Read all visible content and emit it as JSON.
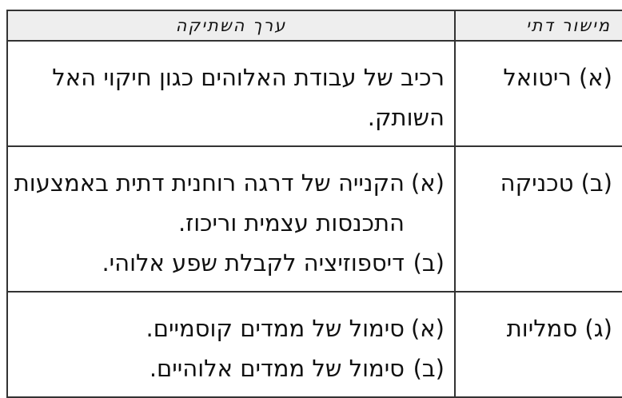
{
  "table": {
    "headers": [
      "מישור דתי",
      "ערך השתיקה"
    ],
    "rows": [
      {
        "category": "(א) ריטואל",
        "items": [
          {
            "label": "",
            "text": "רכיב של עבודת האלוהים כגון חיקוי האל השותק."
          }
        ]
      },
      {
        "category": "(ב) טכניקה",
        "items": [
          {
            "label": "(א)",
            "text": "הקנייה של דרגה רוחנית דתית באמצעות התכנסות עצמית וריכוז."
          },
          {
            "label": "(ב)",
            "text": "דיספוזיציה לקבלת שפע אלוהי."
          }
        ]
      },
      {
        "category": "(ג) סמליות",
        "items": [
          {
            "label": "(א)",
            "text": "סימול של ממדים קוסמיים."
          },
          {
            "label": "(ב)",
            "text": "סימול של ממדים אלוהיים."
          }
        ]
      }
    ]
  },
  "colors": {
    "header_bg": "#eeeeee",
    "border": "#333333"
  }
}
